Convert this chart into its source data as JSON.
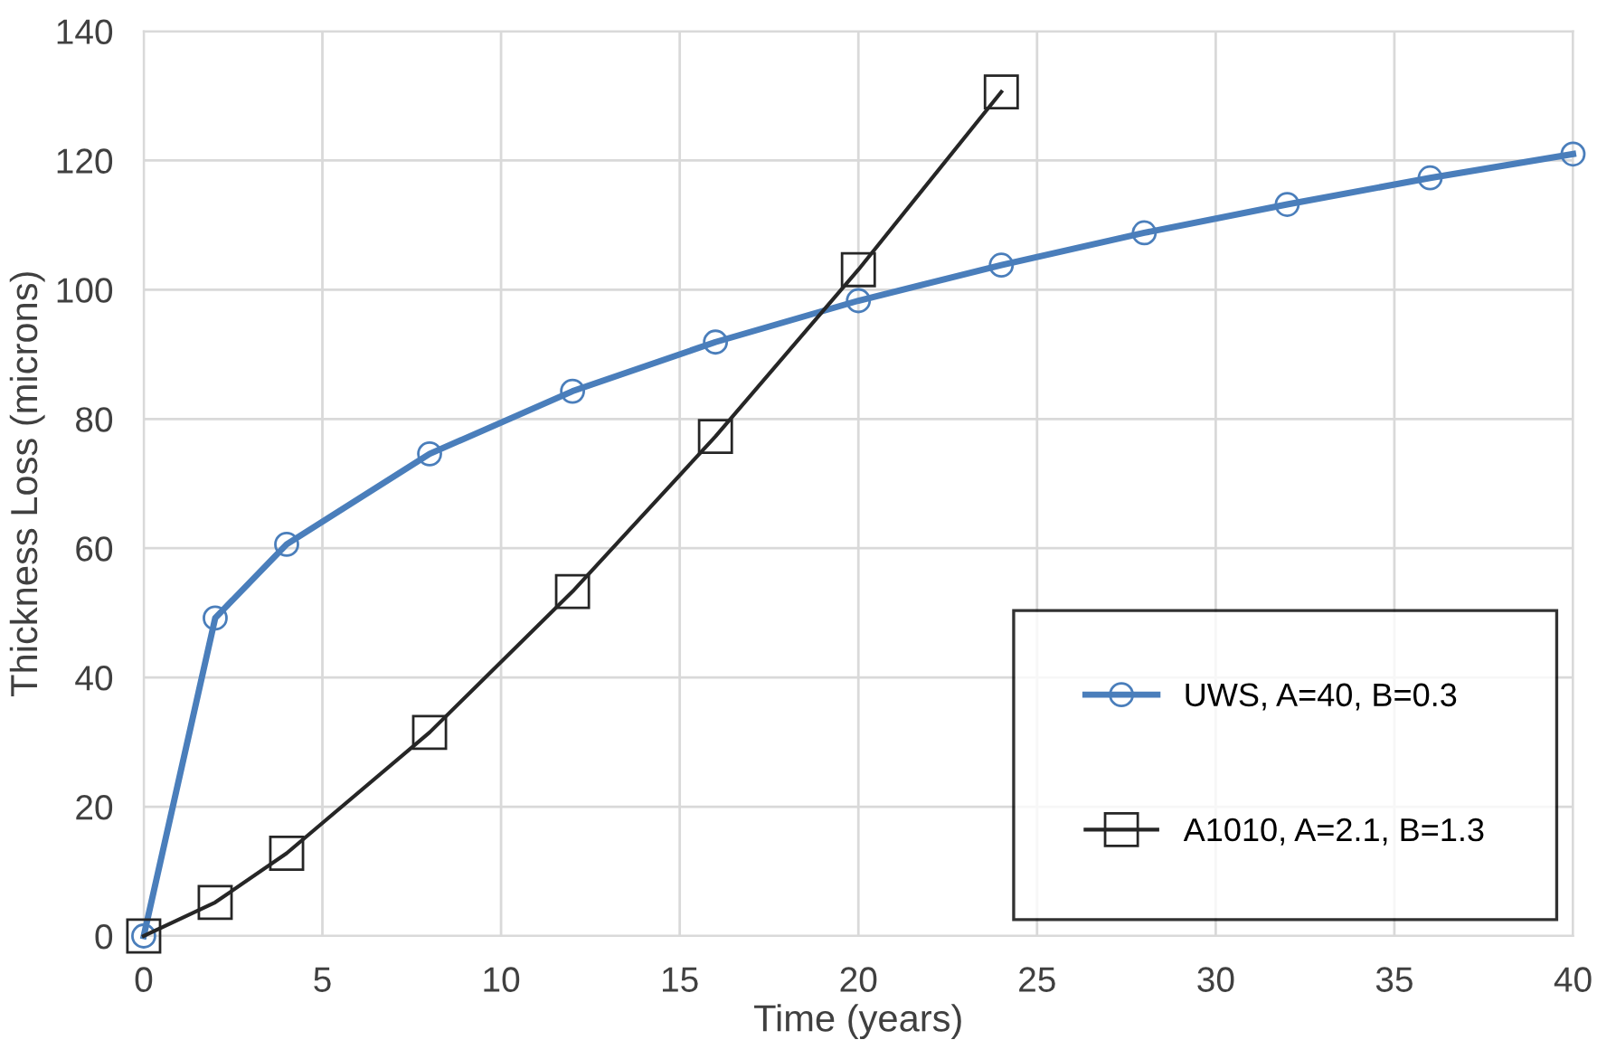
{
  "chart_data": {
    "type": "line",
    "xlabel": "Time (years)",
    "ylabel": "Thickness Loss (microns)",
    "xlim": [
      0,
      40
    ],
    "xticks": [
      0,
      5,
      10,
      15,
      20,
      25,
      30,
      35,
      40
    ],
    "ylim": [
      0,
      140
    ],
    "yticks": [
      0,
      20,
      40,
      60,
      80,
      100,
      120,
      140
    ],
    "grid": true,
    "legend": "bottom right",
    "series": [
      {
        "name": "UWS, A=40, B=0.3",
        "color": "#4a7ebb",
        "marker": "circle",
        "x": [
          0,
          2,
          4,
          8,
          12,
          16,
          20,
          24,
          28,
          32,
          36,
          40
        ],
        "values": [
          0,
          49.2,
          60.6,
          74.6,
          84.3,
          91.9,
          98.3,
          103.8,
          108.8,
          113.2,
          117.3,
          121.0
        ]
      },
      {
        "name": "A1010, A=2.1, B=1.3",
        "color": "#262626",
        "marker": "square",
        "x": [
          0,
          2,
          4,
          8,
          12,
          16,
          20,
          24
        ],
        "values": [
          0,
          5.2,
          12.8,
          31.5,
          53.3,
          77.3,
          103.1,
          130.6
        ]
      }
    ]
  }
}
